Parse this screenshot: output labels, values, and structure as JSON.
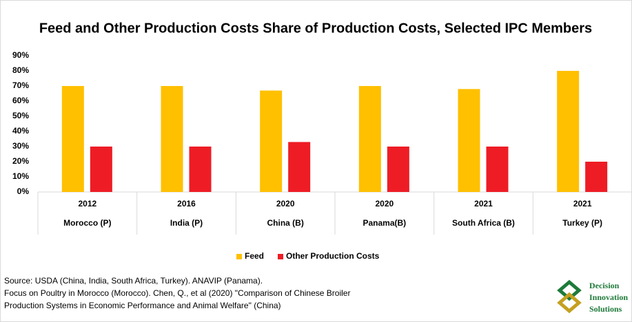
{
  "chart_data": {
    "type": "bar",
    "title": "Feed and Other Production Costs Share of Production Costs, Selected IPC Members",
    "years": [
      "2012",
      "2016",
      "2020",
      "2020",
      "2021",
      "2021"
    ],
    "categories": [
      "Morocco (P)",
      "India (P)",
      "China (B)",
      "Panama(B)",
      "South Africa (B)",
      "Turkey (P)"
    ],
    "series": [
      {
        "name": "Feed",
        "color": "#ffc000",
        "values": [
          70,
          70,
          67,
          70,
          68,
          80
        ]
      },
      {
        "name": "Other Production Costs",
        "color": "#ee1c25",
        "values": [
          30,
          30,
          33,
          30,
          30,
          20
        ]
      }
    ],
    "ylim": [
      0,
      90
    ],
    "yticks": [
      {
        "value": 0,
        "label": "0%"
      },
      {
        "value": 10,
        "label": "10%"
      },
      {
        "value": 20,
        "label": "20%"
      },
      {
        "value": 30,
        "label": "30%"
      },
      {
        "value": 40,
        "label": "40%"
      },
      {
        "value": 50,
        "label": "50%"
      },
      {
        "value": 60,
        "label": "60%"
      },
      {
        "value": 70,
        "label": "70%"
      },
      {
        "value": 80,
        "label": "80%"
      },
      {
        "value": 90,
        "label": "90%"
      }
    ],
    "legend": "bottom",
    "source": [
      "Source: USDA (China, India, South Africa, Turkey). ANAVIP (Panama).",
      "Focus on Poultry in Morocco (Morocco). Chen, Q., et al (2020) \"Comparison of Chinese Broiler",
      "Production Systems in Economic Performance and Animal Welfare\" (China)"
    ]
  },
  "logo": {
    "lines": [
      "Decision",
      "Innovation",
      "Solutions"
    ]
  }
}
